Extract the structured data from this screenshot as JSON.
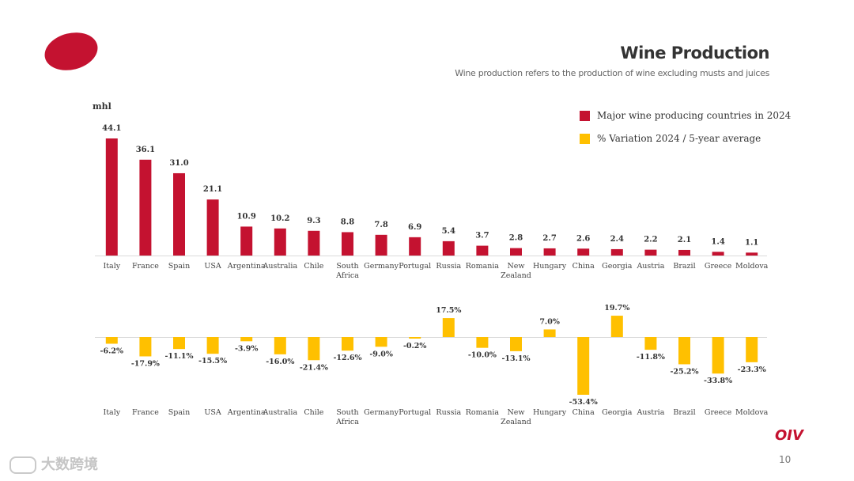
{
  "header": {
    "title": "Wine Production",
    "subtitle": "Wine production refers to the production of wine excluding musts and juices"
  },
  "footer": {
    "brand": "OIV",
    "page_number": "10",
    "watermark": "大数跨境"
  },
  "colors": {
    "production": "#c41230",
    "variation": "#ffc000",
    "axis": "#d9d9d9"
  },
  "chart_data": [
    {
      "type": "bar",
      "unit_label": "mhl",
      "legend": "Major wine producing countries in 2024",
      "categories": [
        "Italy",
        "France",
        "Spain",
        "USA",
        "Argentina",
        "Australia",
        "Chile",
        "South Africa",
        "Germany",
        "Portugal",
        "Russia",
        "Romania",
        "New Zealand",
        "Hungary",
        "China",
        "Georgia",
        "Austria",
        "Brazil",
        "Greece",
        "Moldova"
      ],
      "values": [
        44.1,
        36.1,
        31.0,
        21.1,
        10.9,
        10.2,
        9.3,
        8.8,
        7.8,
        6.9,
        5.4,
        3.7,
        2.8,
        2.7,
        2.6,
        2.4,
        2.2,
        2.1,
        1.4,
        1.1
      ],
      "labels": [
        "44.1",
        "36.1",
        "31.0",
        "21.1",
        "10.9",
        "10.2",
        "9.3",
        "8.8",
        "7.8",
        "6.9",
        "5.4",
        "3.7",
        "2.8",
        "2.7",
        "2.6",
        "2.4",
        "2.2",
        "2.1",
        "1.4",
        "1.1"
      ],
      "ylim": [
        0,
        44.1
      ]
    },
    {
      "type": "bar",
      "legend": "% Variation 2024 / 5-year average",
      "categories": [
        "Italy",
        "France",
        "Spain",
        "USA",
        "Argentina",
        "Australia",
        "Chile",
        "South Africa",
        "Germany",
        "Portugal",
        "Russia",
        "Romania",
        "New Zealand",
        "Hungary",
        "China",
        "Georgia",
        "Austria",
        "Brazil",
        "Greece",
        "Moldova"
      ],
      "values": [
        -6.2,
        -17.9,
        -11.1,
        -15.5,
        -3.9,
        -16.0,
        -21.4,
        -12.6,
        -9.0,
        -0.2,
        17.5,
        -10.0,
        -13.1,
        7.0,
        -53.4,
        19.7,
        -11.8,
        -25.2,
        -33.8,
        -23.3
      ],
      "labels": [
        "-6.2%",
        "-17.9%",
        "-11.1%",
        "-15.5%",
        "-3.9%",
        "-16.0%",
        "-21.4%",
        "-12.6%",
        "-9.0%",
        "-0.2%",
        "17.5%",
        "-10.0%",
        "-13.1%",
        "7.0%",
        "-53.4%",
        "19.7%",
        "-11.8%",
        "-25.2%",
        "-33.8%",
        "-23.3%"
      ],
      "ylim": [
        -53.4,
        19.7
      ]
    }
  ]
}
